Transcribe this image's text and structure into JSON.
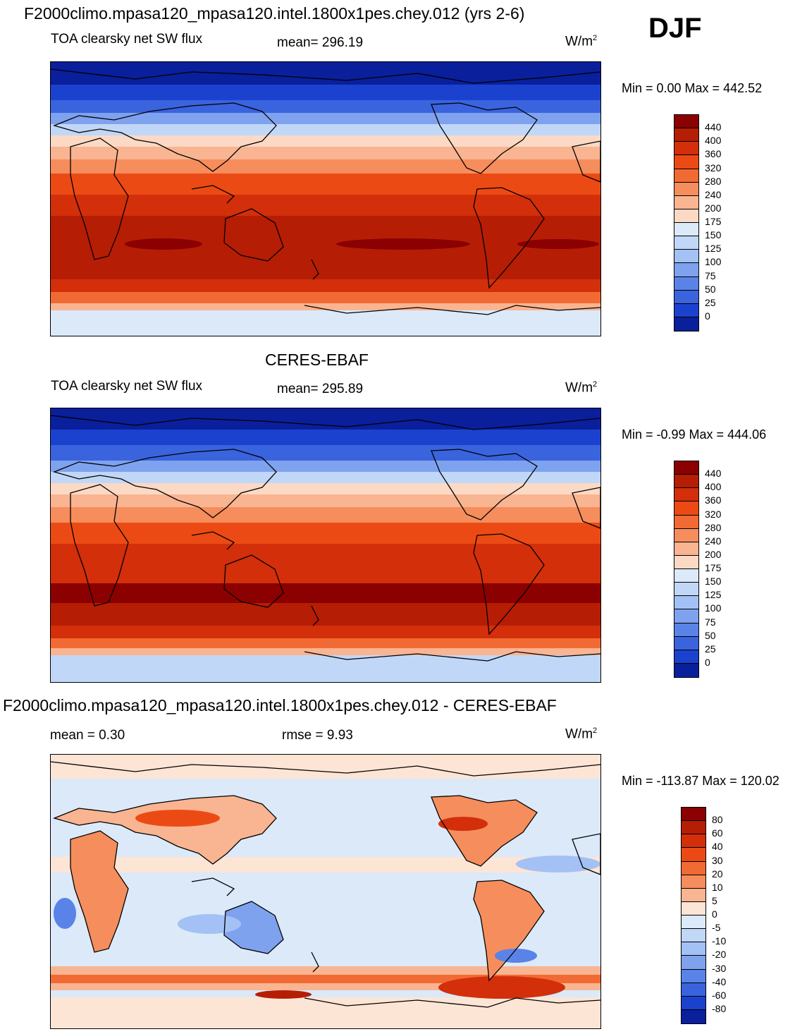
{
  "header": {
    "title": "F2000climo.mpasa120_mpasa120.intel.1800x1pes.chey.012 (yrs 2-6)",
    "season": "DJF"
  },
  "panels": [
    {
      "id": "model",
      "section_title": "",
      "left_label": "TOA clearsky net SW flux",
      "center_label": "mean= 296.19",
      "units": "W/m",
      "units_sup": "2",
      "minmax": "Min =   0.00 Max = 442.52",
      "colorbar": {
        "labels": [
          "440",
          "400",
          "360",
          "320",
          "280",
          "240",
          "200",
          "175",
          "150",
          "125",
          "100",
          "75",
          "50",
          "25",
          "0"
        ],
        "colors": [
          "#8b0000",
          "#b61d05",
          "#d22f0a",
          "#ec4a14",
          "#f26a33",
          "#f68d5c",
          "#f9b491",
          "#fcd9c4",
          "#dbe9f9",
          "#c1d7f7",
          "#a3c1f5",
          "#7fa2ef",
          "#5a83e8",
          "#3a63de",
          "#1b42cf",
          "#0a1f9b"
        ]
      }
    },
    {
      "id": "obs",
      "section_title": "CERES-EBAF",
      "left_label": "TOA clearsky net SW flux",
      "center_label": "mean= 295.89",
      "units": "W/m",
      "units_sup": "2",
      "minmax": "Min =  -0.99 Max = 444.06",
      "colorbar": {
        "labels": [
          "440",
          "400",
          "360",
          "320",
          "280",
          "240",
          "200",
          "175",
          "150",
          "125",
          "100",
          "75",
          "50",
          "25",
          "0"
        ],
        "colors": [
          "#8b0000",
          "#b61d05",
          "#d22f0a",
          "#ec4a14",
          "#f26a33",
          "#f68d5c",
          "#f9b491",
          "#fcd9c4",
          "#dbe9f9",
          "#c1d7f7",
          "#a3c1f5",
          "#7fa2ef",
          "#5a83e8",
          "#3a63de",
          "#1b42cf",
          "#0a1f9b"
        ]
      }
    },
    {
      "id": "diff",
      "section_title": "F2000climo.mpasa120_mpasa120.intel.1800x1pes.chey.012 - CERES-EBAF",
      "left_label": "mean =   0.30",
      "center_label": "rmse =   9.93",
      "units": "W/m",
      "units_sup": "2",
      "minmax": "Min = -113.87 Max = 120.02",
      "colorbar": {
        "labels": [
          "80",
          "60",
          "40",
          "30",
          "20",
          "10",
          "5",
          "0",
          "-5",
          "-10",
          "-20",
          "-30",
          "-40",
          "-60",
          "-80"
        ],
        "colors": [
          "#8b0000",
          "#b61d05",
          "#d22f0a",
          "#ec4a14",
          "#f26a33",
          "#f68d5c",
          "#f9b491",
          "#fde5d6",
          "#dbe9f9",
          "#c1d7f7",
          "#a3c1f5",
          "#7fa2ef",
          "#5a83e8",
          "#3a63de",
          "#1b42cf",
          "#0a1f9b"
        ]
      }
    }
  ]
}
